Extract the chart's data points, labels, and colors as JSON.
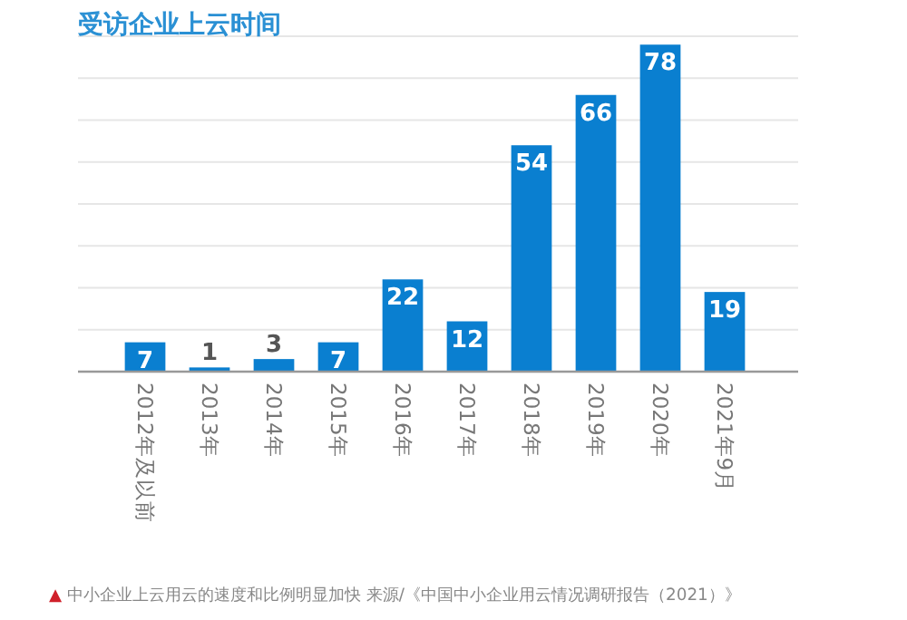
{
  "chart_data": {
    "type": "bar",
    "title": "受访企业上云时间",
    "categories": [
      "2012年及以前",
      "2013年",
      "2014年",
      "2015年",
      "2016年",
      "2017年",
      "2018年",
      "2019年",
      "2020年",
      "2021年9月"
    ],
    "values": [
      7,
      1,
      3,
      7,
      22,
      12,
      54,
      66,
      78,
      19
    ],
    "color": "#0a7fd0",
    "ylim": [
      0,
      80
    ],
    "yticks": [
      {
        "value": 0,
        "label": null
      },
      {
        "value": 10,
        "label": null
      },
      {
        "value": 20,
        "label": null
      },
      {
        "value": 30,
        "label": null
      },
      {
        "value": 40,
        "label": null
      },
      {
        "value": 50,
        "label": null
      },
      {
        "value": 60,
        "label": null
      },
      {
        "value": 70,
        "label": null
      },
      {
        "value": 80,
        "label": null
      }
    ],
    "grid": "y",
    "data_labels": true,
    "tick_labels": "x",
    "annotations": [
      "▲ 中小企业上云用云的速度和比例明显加快 来源/《中国中小企业用云情况调研报告（2021）》"
    ]
  }
}
